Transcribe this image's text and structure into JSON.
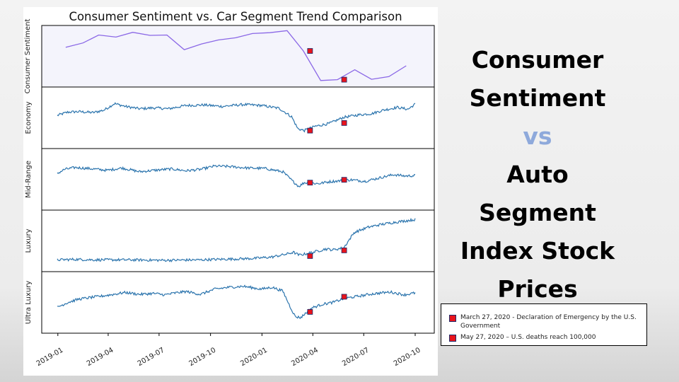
{
  "page": {
    "side_title": {
      "line1": "Consumer",
      "line2": "Sentiment",
      "vs": "vs",
      "line3": "Auto",
      "line4": "Segment",
      "line5": "Index Stock",
      "line6": "Prices"
    },
    "colors": {
      "sentiment_line": "#8a67e6",
      "segment_line": "#2b74ad",
      "marker_fill": "#e8141c",
      "marker_edge": "#1a2a6c",
      "top_panel_bg": "#f4f4fc",
      "vs_text": "#8ea9db"
    }
  },
  "chart_data": {
    "type": "line",
    "title": "Consumer Sentiment vs. Car Segment Trend Comparison",
    "x_start": "2018-12-31",
    "x_end": "2020-10-01",
    "x_ticks": [
      "2019-01",
      "2019-04",
      "2019-07",
      "2019-10",
      "2020-01",
      "2020-04",
      "2020-07",
      "2020-10"
    ],
    "legend": [
      {
        "label": "March 27, 2020 - Declaration of Emergency by the U.S. Government",
        "date": "2020-03-27"
      },
      {
        "label": "May 27, 2020 – U.S. deaths reach 100,000",
        "date": "2020-05-27"
      }
    ],
    "sentiment": {
      "name": "Consumer Sentiment",
      "dates": [
        "2019-01-15",
        "2019-02-15",
        "2019-03-15",
        "2019-04-15",
        "2019-05-15",
        "2019-06-15",
        "2019-07-15",
        "2019-08-15",
        "2019-09-15",
        "2019-10-15",
        "2019-11-15",
        "2019-12-15",
        "2020-01-15",
        "2020-02-15",
        "2020-03-15",
        "2020-04-15",
        "2020-05-15",
        "2020-06-15",
        "2020-07-15",
        "2020-08-15",
        "2020-09-15"
      ],
      "values": [
        91.2,
        93.8,
        98.4,
        97.2,
        100.0,
        98.2,
        98.4,
        89.8,
        93.2,
        95.5,
        96.8,
        99.3,
        99.8,
        101.0,
        89.1,
        71.8,
        72.3,
        78.1,
        72.5,
        74.1,
        80.4
      ],
      "marker_values": [
        89.1,
        72.3
      ]
    },
    "segments": [
      {
        "name": "Economy",
        "ylim": [
          0,
          100
        ],
        "points": [
          [
            0,
            55
          ],
          [
            0.03,
            62
          ],
          [
            0.06,
            63
          ],
          [
            0.1,
            61
          ],
          [
            0.13,
            66
          ],
          [
            0.16,
            80
          ],
          [
            0.19,
            74
          ],
          [
            0.23,
            69
          ],
          [
            0.27,
            71
          ],
          [
            0.31,
            69
          ],
          [
            0.36,
            76
          ],
          [
            0.41,
            77
          ],
          [
            0.46,
            74
          ],
          [
            0.52,
            78
          ],
          [
            0.57,
            76
          ],
          [
            0.62,
            70
          ],
          [
            0.655,
            52
          ],
          [
            0.672,
            27
          ],
          [
            0.69,
            23
          ],
          [
            0.72,
            32
          ],
          [
            0.76,
            38
          ],
          [
            0.8,
            51
          ],
          [
            0.84,
            56
          ],
          [
            0.88,
            59
          ],
          [
            0.91,
            66
          ],
          [
            0.95,
            72
          ],
          [
            0.98,
            68
          ],
          [
            1,
            79
          ]
        ],
        "marker_values": [
          23,
          39
        ]
      },
      {
        "name": "Mid-Range",
        "ylim": [
          0,
          100
        ],
        "points": [
          [
            0,
            62
          ],
          [
            0.02,
            71
          ],
          [
            0.05,
            75
          ],
          [
            0.1,
            72
          ],
          [
            0.14,
            69
          ],
          [
            0.18,
            74
          ],
          [
            0.23,
            66
          ],
          [
            0.27,
            69
          ],
          [
            0.32,
            72
          ],
          [
            0.36,
            68
          ],
          [
            0.4,
            71
          ],
          [
            0.44,
            78
          ],
          [
            0.48,
            77
          ],
          [
            0.53,
            74
          ],
          [
            0.58,
            73
          ],
          [
            0.63,
            66
          ],
          [
            0.655,
            48
          ],
          [
            0.675,
            35
          ],
          [
            0.69,
            43
          ],
          [
            0.73,
            41
          ],
          [
            0.76,
            45
          ],
          [
            0.79,
            47
          ],
          [
            0.82,
            49
          ],
          [
            0.86,
            46
          ],
          [
            0.9,
            53
          ],
          [
            0.94,
            60
          ],
          [
            0.97,
            57
          ],
          [
            1,
            58
          ]
        ],
        "marker_values": [
          43,
          49
        ]
      },
      {
        "name": "Luxury",
        "ylim": [
          0,
          100
        ],
        "points": [
          [
            0,
            10
          ],
          [
            0.05,
            11
          ],
          [
            0.1,
            10
          ],
          [
            0.2,
            10
          ],
          [
            0.3,
            9
          ],
          [
            0.4,
            10
          ],
          [
            0.5,
            12
          ],
          [
            0.55,
            13
          ],
          [
            0.6,
            16
          ],
          [
            0.64,
            22
          ],
          [
            0.66,
            26
          ],
          [
            0.675,
            20
          ],
          [
            0.69,
            22
          ],
          [
            0.72,
            27
          ],
          [
            0.75,
            33
          ],
          [
            0.77,
            31
          ],
          [
            0.79,
            34
          ],
          [
            0.8,
            35
          ],
          [
            0.83,
            68
          ],
          [
            0.87,
            79
          ],
          [
            0.9,
            84
          ],
          [
            0.94,
            89
          ],
          [
            0.97,
            92
          ],
          [
            1,
            95
          ]
        ],
        "marker_values": [
          18,
          30
        ]
      },
      {
        "name": "Ultra Luxury",
        "ylim": [
          0,
          100
        ],
        "points": [
          [
            0,
            40
          ],
          [
            0.03,
            50
          ],
          [
            0.06,
            57
          ],
          [
            0.1,
            61
          ],
          [
            0.14,
            65
          ],
          [
            0.19,
            71
          ],
          [
            0.23,
            67
          ],
          [
            0.27,
            69
          ],
          [
            0.3,
            66
          ],
          [
            0.33,
            70
          ],
          [
            0.36,
            73
          ],
          [
            0.4,
            67
          ],
          [
            0.44,
            78
          ],
          [
            0.48,
            82
          ],
          [
            0.52,
            84
          ],
          [
            0.57,
            78
          ],
          [
            0.6,
            82
          ],
          [
            0.63,
            74
          ],
          [
            0.65,
            42
          ],
          [
            0.665,
            20
          ],
          [
            0.68,
            18
          ],
          [
            0.71,
            38
          ],
          [
            0.74,
            46
          ],
          [
            0.77,
            50
          ],
          [
            0.8,
            58
          ],
          [
            0.84,
            63
          ],
          [
            0.88,
            68
          ],
          [
            0.93,
            72
          ],
          [
            0.97,
            66
          ],
          [
            1,
            70
          ]
        ],
        "marker_values": [
          30,
          62
        ]
      }
    ]
  }
}
